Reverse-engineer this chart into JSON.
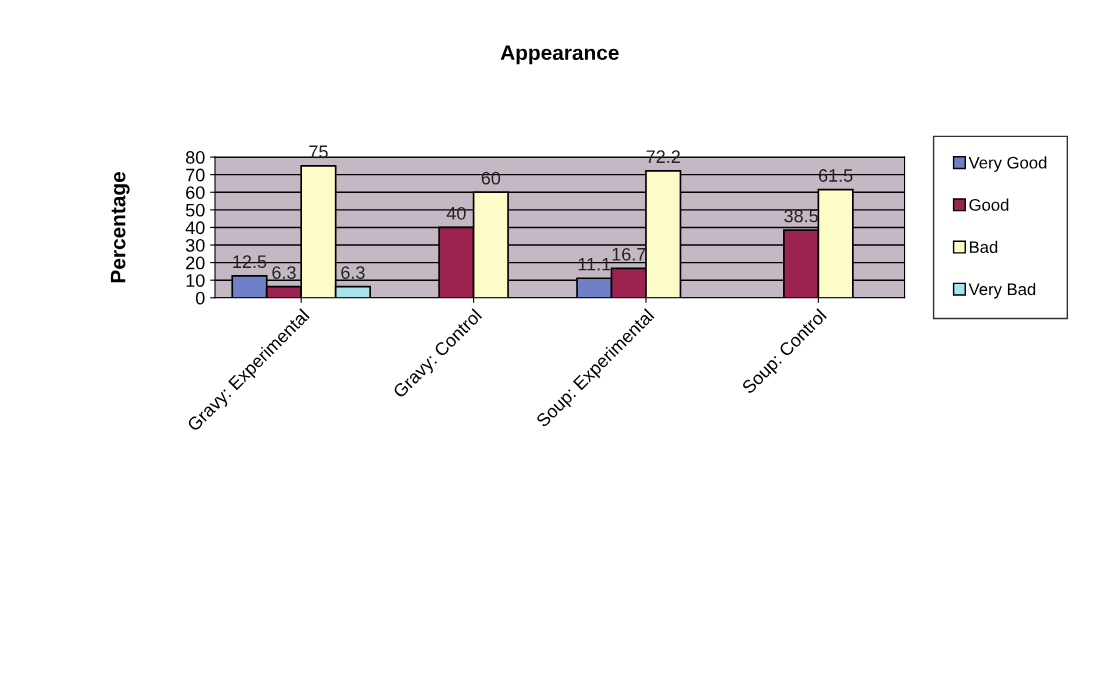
{
  "chart_data": {
    "type": "bar",
    "title": "Appearance",
    "ylabel": "Percentage",
    "categories": [
      "Gravy: Experimental",
      "Gravy: Control",
      "Soup: Experimental",
      "Soup: Control"
    ],
    "series": [
      {
        "name": "Very Good",
        "color": "#7080c8",
        "values": [
          12.5,
          null,
          11.1,
          null
        ]
      },
      {
        "name": "Good",
        "color": "#9c2350",
        "values": [
          6.3,
          40,
          16.7,
          38.5
        ]
      },
      {
        "name": "Bad",
        "color": "#fdfbc8",
        "values": [
          75,
          60,
          72.2,
          61.5
        ]
      },
      {
        "name": "Very Bad",
        "color": "#a8e4ec",
        "values": [
          6.3,
          null,
          null,
          null
        ]
      }
    ],
    "ylim": [
      0,
      80
    ],
    "yticks": [
      0,
      10,
      20,
      30,
      40,
      50,
      60,
      70,
      80
    ],
    "grid": "y",
    "legend": "right",
    "data_labels": true
  }
}
